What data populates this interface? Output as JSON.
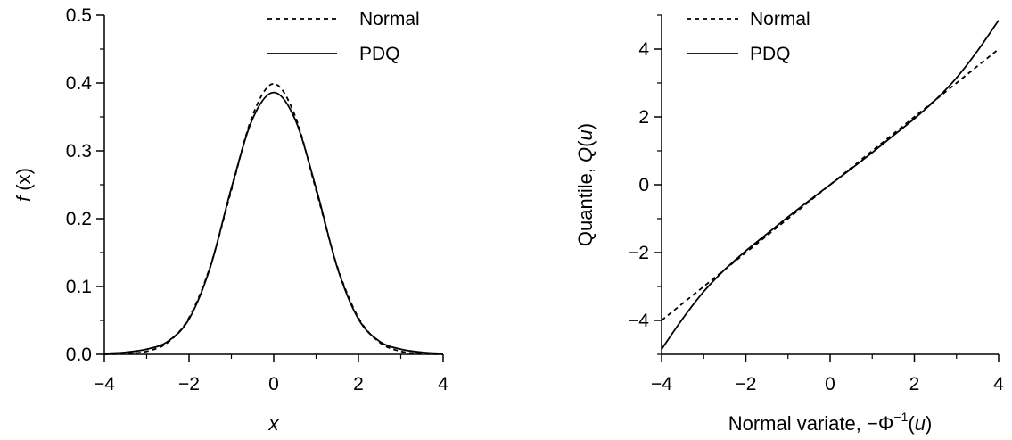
{
  "chart_data": [
    {
      "type": "line",
      "xlabel": "x",
      "ylabel_italic": "f",
      "ylabel_rest": " (x)",
      "xlim": [
        -4,
        4
      ],
      "ylim": [
        0,
        0.5
      ],
      "xticks": [
        -4,
        -2,
        0,
        2,
        4
      ],
      "xtick_labels": [
        "−4",
        "−2",
        "0",
        "2",
        "4"
      ],
      "xminor": [
        -3,
        -1,
        1,
        3
      ],
      "yticks": [
        0,
        0.1,
        0.2,
        0.3,
        0.4,
        0.5
      ],
      "ytick_labels": [
        "0.0",
        "0.1",
        "0.2",
        "0.3",
        "0.4",
        "0.5"
      ],
      "yminor": [
        0.05,
        0.15,
        0.25,
        0.35,
        0.45
      ],
      "legend_position": "top-right",
      "grid": false,
      "series": [
        {
          "name": "Normal",
          "style": "dashed",
          "x": [
            -4,
            -3.5,
            -3,
            -2.5,
            -2,
            -1.5,
            -1,
            -0.5,
            0,
            0.5,
            1,
            1.5,
            2,
            2.5,
            3,
            3.5,
            4
          ],
          "y": [
            0.0001,
            0.0009,
            0.0044,
            0.0175,
            0.054,
            0.1295,
            0.242,
            0.3521,
            0.3989,
            0.3521,
            0.242,
            0.1295,
            0.054,
            0.0175,
            0.0044,
            0.0009,
            0.0001
          ]
        },
        {
          "name": "PDQ",
          "style": "solid",
          "x": [
            -4,
            -3.5,
            -3,
            -2.5,
            -2,
            -1.5,
            -1,
            -0.5,
            0,
            0.5,
            1,
            1.5,
            2,
            2.5,
            3,
            3.5,
            4
          ],
          "y": [
            0.0012,
            0.003,
            0.0075,
            0.019,
            0.052,
            0.128,
            0.245,
            0.347,
            0.386,
            0.347,
            0.245,
            0.128,
            0.052,
            0.019,
            0.0075,
            0.003,
            0.0012
          ]
        }
      ]
    },
    {
      "type": "line",
      "xlabel_prefix": "Normal variate, −Φ",
      "xlabel_sup": "−1",
      "xlabel_open": "(",
      "xlabel_var": "u",
      "xlabel_close": ")",
      "ylabel_prefix": "Quantile,  ",
      "ylabel_fn": "Q",
      "ylabel_open": "(",
      "ylabel_var": "u",
      "ylabel_close": ")",
      "xlim": [
        -4,
        4
      ],
      "ylim": [
        -5,
        5
      ],
      "xticks": [
        -4,
        -2,
        0,
        2,
        4
      ],
      "xtick_labels": [
        "−4",
        "−2",
        "0",
        "2",
        "4"
      ],
      "xminor": [
        -3,
        -1,
        1,
        3
      ],
      "yticks": [
        -4,
        -2,
        0,
        2,
        4
      ],
      "ytick_labels": [
        "−4",
        "−2",
        "0",
        "2",
        "4"
      ],
      "yminor": [
        -5,
        -3,
        -1,
        1,
        3,
        5
      ],
      "legend_position": "top-left",
      "grid": false,
      "series": [
        {
          "name": "Normal",
          "style": "dashed",
          "x": [
            -4,
            4
          ],
          "y": [
            -4,
            4
          ]
        },
        {
          "name": "PDQ",
          "style": "solid",
          "x": [
            -4,
            -3.5,
            -3,
            -2.5,
            -2,
            -1.5,
            -1,
            -0.5,
            0,
            0.5,
            1,
            1.5,
            2,
            2.5,
            3,
            3.5,
            4
          ],
          "y": [
            -4.85,
            -3.95,
            -3.15,
            -2.5,
            -1.95,
            -1.45,
            -0.95,
            -0.47,
            0,
            0.47,
            0.95,
            1.45,
            1.95,
            2.5,
            3.15,
            3.95,
            4.85
          ]
        }
      ]
    }
  ]
}
